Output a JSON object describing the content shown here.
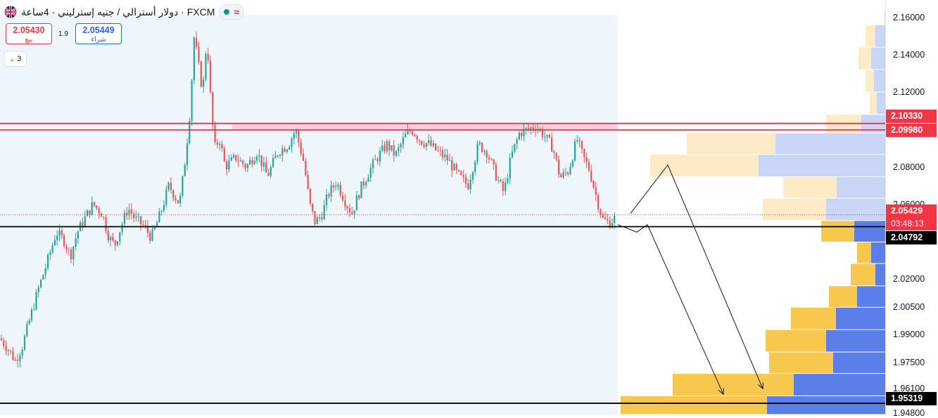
{
  "header": {
    "title": "دولار أسترالي / جنيه إسترليني · 4ساعة · FXCM",
    "flag_icon": "gbp-aud-flag-icon",
    "status_icon": "market-open-dot-icon",
    "toggle_icon": "wave-icon"
  },
  "trade": {
    "sell_price": "2.05430",
    "sell_label": "بيع",
    "spread": "1.9",
    "buy_price": "2.05449",
    "buy_label": "شراء"
  },
  "indicators_count": "3",
  "price_badges": {
    "resistance_top": "2.10330",
    "resistance_bottom": "2.09980",
    "current_price": "2.05429",
    "countdown": "03:48:13",
    "support_1": "2.04792",
    "support_2": "1.95319"
  },
  "colors": {
    "up": "#26a69a",
    "down": "#ef5350",
    "resistance": "#e8334a",
    "zone_fill": "#f8c8d4",
    "range_bg": "#eef6fc",
    "vp_up": "#5b7fe9",
    "vp_down": "#f8c74e"
  },
  "chart_data": {
    "type": "candlestick",
    "symbol": "GBPAUD",
    "timeframe": "4ساعة",
    "y_range": [
      1.9468,
      2.1695
    ],
    "y_ticks": [
      "2.16000",
      "2.14000",
      "2.12000",
      "2.10330",
      "2.09980",
      "2.08000",
      "2.06000",
      "2.05429",
      "2.04792",
      "2.02000",
      "2.00500",
      "1.99000",
      "1.97500",
      "1.96100",
      "1.95319",
      "1.94800"
    ],
    "resistance_zone": [
      2.0998,
      2.1033
    ],
    "support_levels": [
      2.04792,
      1.95319
    ],
    "current_price": 2.05429,
    "price_path": [
      [
        0,
        1.988
      ],
      [
        12,
        1.982
      ],
      [
        22,
        1.976
      ],
      [
        32,
        1.984
      ],
      [
        42,
        1.998
      ],
      [
        55,
        2.015
      ],
      [
        68,
        2.03
      ],
      [
        80,
        2.045
      ],
      [
        92,
        2.04
      ],
      [
        100,
        2.032
      ],
      [
        110,
        2.045
      ],
      [
        120,
        2.052
      ],
      [
        132,
        2.06
      ],
      [
        145,
        2.055
      ],
      [
        155,
        2.042
      ],
      [
        163,
        2.038
      ],
      [
        172,
        2.048
      ],
      [
        182,
        2.058
      ],
      [
        192,
        2.052
      ],
      [
        205,
        2.048
      ],
      [
        215,
        2.042
      ],
      [
        228,
        2.055
      ],
      [
        240,
        2.07
      ],
      [
        255,
        2.06
      ],
      [
        262,
        2.08
      ],
      [
        270,
        2.11
      ],
      [
        276,
        2.15
      ],
      [
        282,
        2.135
      ],
      [
        288,
        2.12
      ],
      [
        294,
        2.15
      ],
      [
        300,
        2.112
      ],
      [
        305,
        2.09
      ],
      [
        312,
        2.095
      ],
      [
        320,
        2.08
      ],
      [
        335,
        2.085
      ],
      [
        350,
        2.08
      ],
      [
        365,
        2.088
      ],
      [
        380,
        2.075
      ],
      [
        395,
        2.088
      ],
      [
        410,
        2.092
      ],
      [
        420,
        2.1
      ],
      [
        432,
        2.082
      ],
      [
        440,
        2.06
      ],
      [
        448,
        2.05
      ],
      [
        458,
        2.055
      ],
      [
        466,
        2.065
      ],
      [
        478,
        2.072
      ],
      [
        490,
        2.062
      ],
      [
        500,
        2.055
      ],
      [
        512,
        2.068
      ],
      [
        525,
        2.078
      ],
      [
        538,
        2.086
      ],
      [
        550,
        2.092
      ],
      [
        562,
        2.086
      ],
      [
        575,
        2.096
      ],
      [
        585,
        2.1
      ],
      [
        598,
        2.094
      ],
      [
        610,
        2.092
      ],
      [
        622,
        2.088
      ],
      [
        636,
        2.084
      ],
      [
        650,
        2.076
      ],
      [
        665,
        2.07
      ],
      [
        680,
        2.092
      ],
      [
        692,
        2.088
      ],
      [
        704,
        2.076
      ],
      [
        716,
        2.066
      ],
      [
        726,
        2.085
      ],
      [
        738,
        2.098
      ],
      [
        750,
        2.1
      ],
      [
        762,
        2.102
      ],
      [
        775,
        2.096
      ],
      [
        786,
        2.09
      ],
      [
        796,
        2.074
      ],
      [
        808,
        2.078
      ],
      [
        820,
        2.095
      ],
      [
        828,
        2.086
      ],
      [
        838,
        2.078
      ],
      [
        846,
        2.066
      ],
      [
        856,
        2.052
      ],
      [
        866,
        2.05
      ],
      [
        878,
        2.054
      ]
    ],
    "projection": [
      [
        [
          896,
          2.055
        ],
        [
          949,
          2.081
        ],
        [
          1084,
          1.961
        ]
      ],
      [
        [
          878,
          2.049
        ],
        [
          905,
          2.045
        ],
        [
          920,
          2.049
        ],
        [
          1028,
          1.958
        ]
      ]
    ],
    "volume_profile": [
      {
        "top": 2.163,
        "bottom": 2.156,
        "up": 2,
        "down": 0
      },
      {
        "top": 2.156,
        "bottom": 2.144,
        "up": 14,
        "down": 14
      },
      {
        "top": 2.144,
        "bottom": 2.132,
        "up": 18,
        "down": 20
      },
      {
        "top": 2.132,
        "bottom": 2.12,
        "up": 12,
        "down": 16
      },
      {
        "top": 2.12,
        "bottom": 2.108,
        "up": 10,
        "down": 12
      },
      {
        "top": 2.108,
        "bottom": 2.098,
        "up": 50,
        "down": 34
      },
      {
        "top": 2.098,
        "bottom": 2.0865,
        "up": 126,
        "down": 156
      },
      {
        "top": 2.0865,
        "bottom": 2.0745,
        "up": 154,
        "down": 180
      },
      {
        "top": 2.0745,
        "bottom": 2.063,
        "up": 76,
        "down": 69
      },
      {
        "top": 2.063,
        "bottom": 2.051,
        "up": 90,
        "down": 84
      },
      {
        "top": 2.051,
        "bottom": 2.0395,
        "up": 47,
        "down": 44
      },
      {
        "top": 2.0395,
        "bottom": 2.028,
        "up": 20,
        "down": 20
      },
      {
        "top": 2.028,
        "bottom": 2.016,
        "up": 35,
        "down": 14
      },
      {
        "top": 2.016,
        "bottom": 2.0045,
        "up": 40,
        "down": 40
      },
      {
        "top": 2.0045,
        "bottom": 1.9925,
        "up": 64,
        "down": 70
      },
      {
        "top": 1.9925,
        "bottom": 1.9805,
        "up": 86,
        "down": 84
      },
      {
        "top": 1.9805,
        "bottom": 1.969,
        "up": 91,
        "down": 74
      },
      {
        "top": 1.969,
        "bottom": 1.957,
        "up": 172,
        "down": 130
      },
      {
        "top": 1.957,
        "bottom": 1.947,
        "up": 208,
        "down": 168
      }
    ]
  }
}
